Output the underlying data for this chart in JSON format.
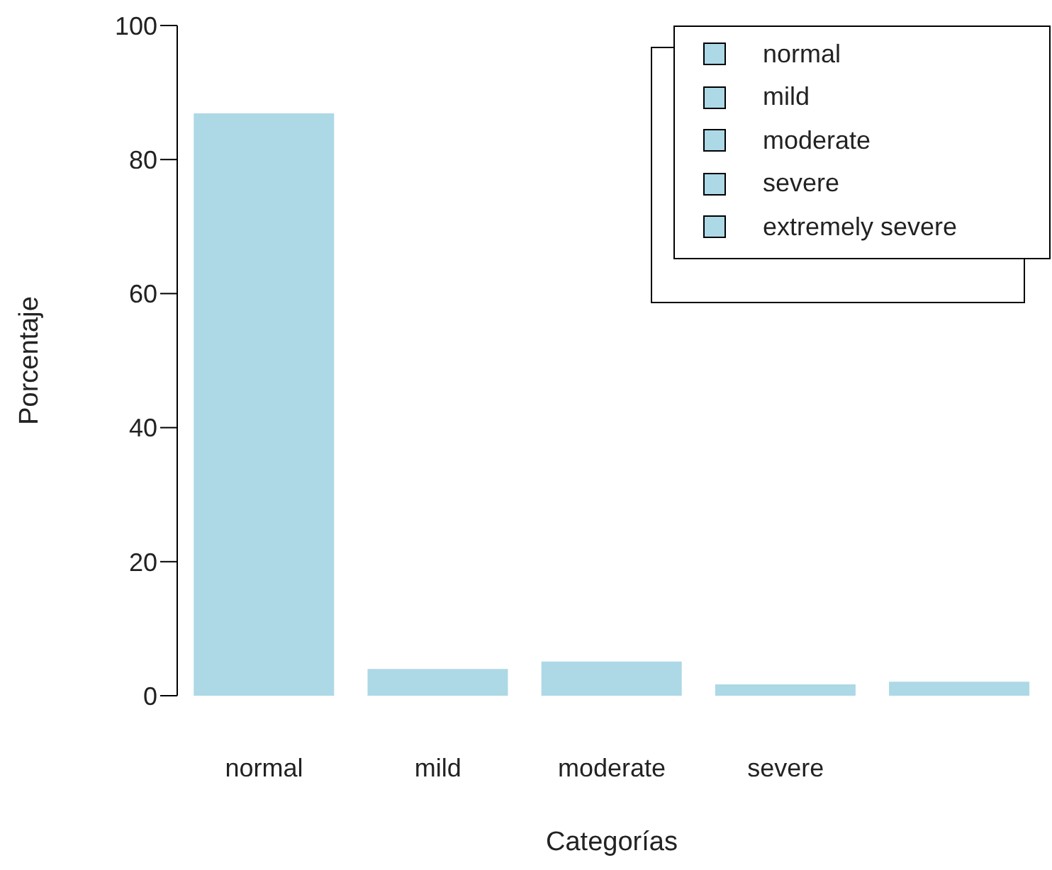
{
  "chart_data": {
    "type": "bar",
    "xlabel": "Categorías",
    "ylabel": "Porcentaje",
    "categories": [
      "normal",
      "mild",
      "moderate",
      "severe",
      null
    ],
    "stacked": true,
    "series": [
      {
        "name": "normal",
        "color": "#add8e6",
        "values": [
          86.9,
          null,
          null,
          null,
          null
        ]
      },
      {
        "name": "mild",
        "color": "#add8e6",
        "values": [
          null,
          4.0,
          null,
          null,
          null
        ]
      },
      {
        "name": "moderate",
        "color": "#add8e6",
        "values": [
          null,
          null,
          5.1,
          null,
          null
        ]
      },
      {
        "name": "severe",
        "color": "#add8e6",
        "values": [
          null,
          null,
          null,
          1.7,
          null
        ]
      },
      {
        "name": "extremely severe",
        "color": "#add8e6",
        "values": [
          null,
          null,
          null,
          null,
          2.1
        ]
      }
    ],
    "ylim": [
      0,
      100
    ],
    "yticks": [
      0,
      20,
      40,
      60,
      80,
      100
    ],
    "legend": "top right",
    "grid": false
  }
}
